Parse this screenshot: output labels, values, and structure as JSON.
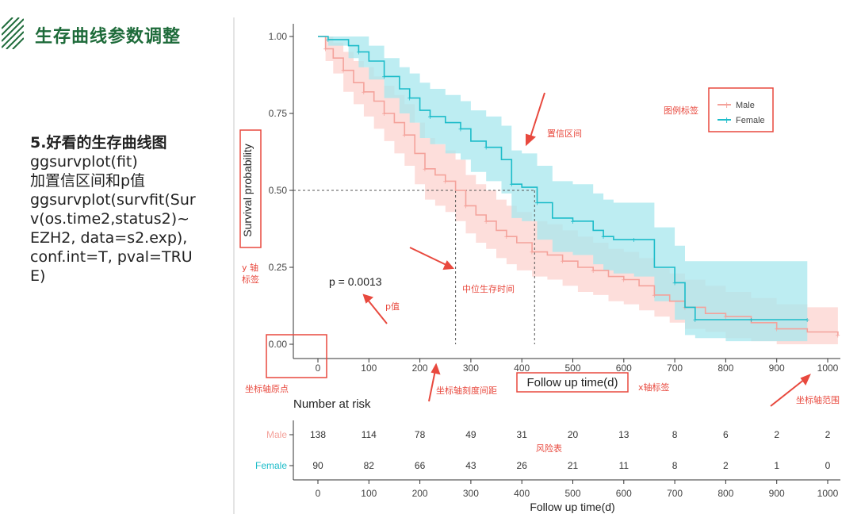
{
  "slide": {
    "title": "生存曲线参数调整",
    "subtitle": "5.好看的生存曲线图",
    "lines": [
      "ggsurvplot(fit)",
      "加置信区间和p值",
      "ggsurvplot(survfit(Surv(os.time2,status2)~EZH2, data=s2.exp), conf.int=T, pval=TRUE)"
    ]
  },
  "annotations": {
    "legend_label": "图例标签",
    "ci": "置信区间",
    "y_label": "y 轴\n标签",
    "median": "中位生存时间",
    "pvalue": "p值",
    "origin": "坐标轴原点",
    "tick_spacing": "坐标轴刻度间距",
    "x_label": "x轴标签",
    "axis_range": "坐标轴范围",
    "risk_table": "风险表"
  },
  "colors": {
    "male": "#f4a29b",
    "female": "#1cbcc9",
    "male_band": "#fcd3cf",
    "female_band": "#a7e7ee",
    "annotation": "#e8493e",
    "title": "#1e6b3a"
  },
  "chart_data": {
    "type": "line",
    "ylabel": "Survival probability",
    "xlabel": "Follow up time(d)",
    "xlim": [
      0,
      1000
    ],
    "ylim": [
      0,
      1
    ],
    "xticks": [
      0,
      100,
      200,
      300,
      400,
      500,
      600,
      700,
      800,
      900,
      1000
    ],
    "yticks": [
      0.0,
      0.25,
      0.5,
      0.75,
      1.0
    ],
    "ytick_labels": [
      "0.00",
      "0.25",
      "0.50",
      "0.75",
      "1.00"
    ],
    "pvalue_text": "p = 0.0013",
    "legend": [
      "Male",
      "Female"
    ],
    "legend_position": "top-right",
    "median": {
      "y": 0.5,
      "male_x": 270,
      "female_x": 425
    },
    "series": [
      {
        "name": "Male",
        "x": [
          0,
          15,
          30,
          50,
          70,
          90,
          110,
          130,
          150,
          170,
          190,
          210,
          230,
          250,
          270,
          290,
          310,
          330,
          350,
          370,
          390,
          420,
          450,
          480,
          510,
          540,
          570,
          600,
          630,
          660,
          690,
          720,
          760,
          800,
          850,
          900,
          960,
          1020
        ],
        "y": [
          1.0,
          0.96,
          0.93,
          0.89,
          0.85,
          0.82,
          0.79,
          0.75,
          0.72,
          0.68,
          0.62,
          0.57,
          0.55,
          0.53,
          0.5,
          0.45,
          0.42,
          0.4,
          0.37,
          0.35,
          0.33,
          0.3,
          0.29,
          0.27,
          0.25,
          0.24,
          0.22,
          0.21,
          0.19,
          0.16,
          0.14,
          0.12,
          0.1,
          0.09,
          0.07,
          0.05,
          0.04,
          0.03
        ],
        "lower": [
          1.0,
          0.92,
          0.88,
          0.82,
          0.78,
          0.74,
          0.7,
          0.66,
          0.62,
          0.58,
          0.52,
          0.47,
          0.45,
          0.43,
          0.4,
          0.36,
          0.33,
          0.31,
          0.28,
          0.26,
          0.24,
          0.22,
          0.21,
          0.19,
          0.17,
          0.16,
          0.14,
          0.13,
          0.11,
          0.09,
          0.07,
          0.05,
          0.04,
          0.02,
          0.01,
          0.0,
          0.0,
          0.0
        ],
        "upper": [
          1.0,
          1.0,
          0.98,
          0.95,
          0.92,
          0.9,
          0.87,
          0.84,
          0.81,
          0.78,
          0.72,
          0.67,
          0.65,
          0.63,
          0.6,
          0.55,
          0.52,
          0.5,
          0.47,
          0.45,
          0.43,
          0.4,
          0.39,
          0.37,
          0.35,
          0.33,
          0.31,
          0.3,
          0.28,
          0.25,
          0.23,
          0.21,
          0.19,
          0.17,
          0.15,
          0.13,
          0.12,
          0.11
        ]
      },
      {
        "name": "Female",
        "x": [
          0,
          20,
          60,
          80,
          100,
          130,
          160,
          180,
          200,
          220,
          250,
          280,
          300,
          330,
          360,
          380,
          400,
          430,
          460,
          500,
          540,
          560,
          580,
          620,
          660,
          700,
          720,
          740,
          800,
          850,
          900,
          960
        ],
        "y": [
          1.0,
          0.99,
          0.97,
          0.95,
          0.92,
          0.87,
          0.83,
          0.8,
          0.76,
          0.74,
          0.72,
          0.7,
          0.66,
          0.64,
          0.6,
          0.52,
          0.51,
          0.46,
          0.41,
          0.4,
          0.37,
          0.35,
          0.34,
          0.34,
          0.25,
          0.2,
          0.12,
          0.08,
          0.08,
          0.08,
          0.08,
          0.08
        ],
        "lower": [
          1.0,
          0.97,
          0.93,
          0.9,
          0.86,
          0.8,
          0.75,
          0.72,
          0.67,
          0.65,
          0.62,
          0.6,
          0.56,
          0.53,
          0.49,
          0.41,
          0.4,
          0.34,
          0.3,
          0.29,
          0.26,
          0.24,
          0.23,
          0.22,
          0.14,
          0.08,
          0.03,
          0.02,
          0.01,
          0.01,
          0.01,
          0.01
        ],
        "upper": [
          1.0,
          1.0,
          1.0,
          1.0,
          0.97,
          0.93,
          0.9,
          0.88,
          0.85,
          0.83,
          0.81,
          0.79,
          0.76,
          0.74,
          0.71,
          0.63,
          0.62,
          0.58,
          0.53,
          0.52,
          0.49,
          0.47,
          0.46,
          0.46,
          0.38,
          0.32,
          0.27,
          0.27,
          0.27,
          0.27,
          0.27,
          0.27
        ]
      }
    ],
    "risk_table": {
      "title": "Number at risk",
      "times": [
        0,
        100,
        200,
        300,
        400,
        500,
        600,
        700,
        800,
        900,
        1000
      ],
      "rows": [
        {
          "name": "Male",
          "values": [
            138,
            114,
            78,
            49,
            31,
            20,
            13,
            8,
            6,
            2,
            2
          ]
        },
        {
          "name": "Female",
          "values": [
            90,
            82,
            66,
            43,
            26,
            21,
            11,
            8,
            2,
            1,
            0
          ]
        }
      ],
      "xlabel": "Follow up time(d)"
    }
  }
}
